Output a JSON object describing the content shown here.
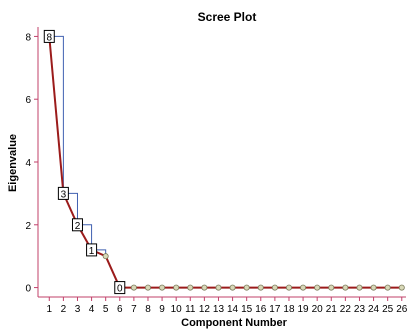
{
  "chart_data": {
    "type": "line",
    "title": "Scree Plot",
    "xlabel": "Component Number",
    "ylabel": "Eigenvalue",
    "x": [
      1,
      2,
      3,
      4,
      5,
      6,
      7,
      8,
      9,
      10,
      11,
      12,
      13,
      14,
      15,
      16,
      17,
      18,
      19,
      20,
      21,
      22,
      23,
      24,
      25,
      26
    ],
    "y": [
      8,
      3,
      2,
      1.2,
      1,
      0,
      0,
      0,
      0,
      0,
      0,
      0,
      0,
      0,
      0,
      0,
      0,
      0,
      0,
      0,
      0,
      0,
      0,
      0,
      0,
      0
    ],
    "xticks": [
      "1",
      "2",
      "3",
      "4",
      "5",
      "6",
      "7",
      "8",
      "9",
      "10",
      "11",
      "12",
      "13",
      "14",
      "15",
      "16",
      "17",
      "18",
      "19",
      "20",
      "21",
      "22",
      "23",
      "24",
      "25",
      "26"
    ],
    "yticks": [
      "0",
      "2",
      "4",
      "6",
      "8"
    ],
    "ylim": [
      -0.3,
      8.3
    ],
    "annotations": [
      {
        "x": 1,
        "y": 8,
        "label": "8"
      },
      {
        "x": 2,
        "y": 3,
        "label": "3"
      },
      {
        "x": 3,
        "y": 2,
        "label": "2"
      },
      {
        "x": 4,
        "y": 1.2,
        "label": "1"
      },
      {
        "x": 6,
        "y": 0,
        "label": "0"
      }
    ],
    "colors": {
      "line": "#9b1b1b",
      "marker_fill": "#d8d8b8",
      "axis": "#c0406a",
      "step_line": "#4060b0",
      "label_box": "#000000"
    },
    "grid": false
  }
}
